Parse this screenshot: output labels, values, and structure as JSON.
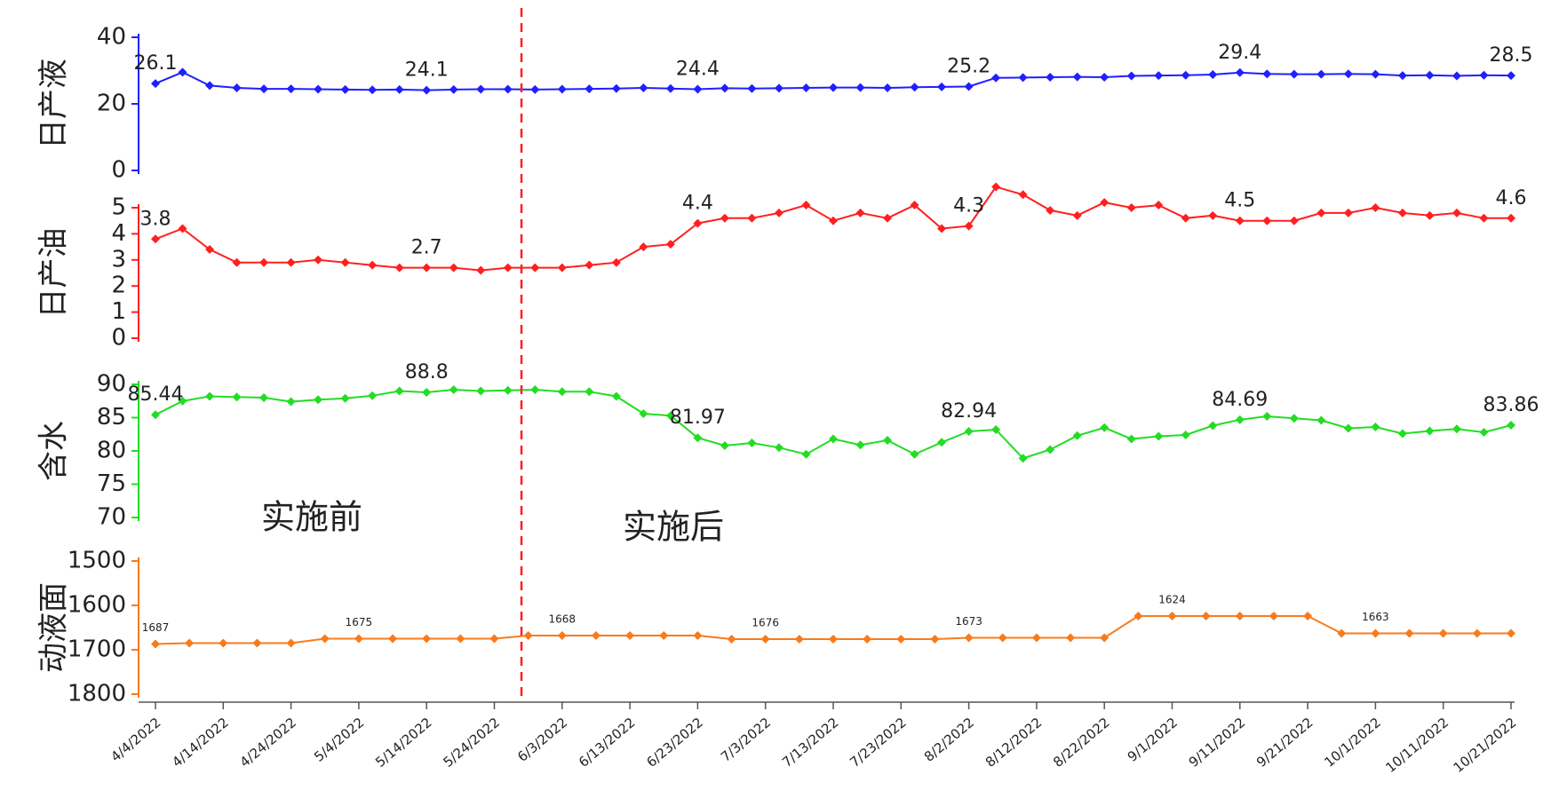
{
  "chart_data": [
    {
      "type": "line",
      "ylabel": "日产液",
      "ylim": [
        0,
        40
      ],
      "yticks": [
        0,
        20,
        40
      ],
      "xlim": [
        "4/4/2022",
        "10/21/2022"
      ],
      "x": [
        "4/4/2022",
        "4/8/2022",
        "4/12/2022",
        "4/16/2022",
        "4/20/2022",
        "4/24/2022",
        "4/28/2022",
        "5/2/2022",
        "5/6/2022",
        "5/10/2022",
        "5/14/2022",
        "5/18/2022",
        "5/22/2022",
        "5/26/2022",
        "5/30/2022",
        "6/3/2022",
        "6/7/2022",
        "6/11/2022",
        "6/15/2022",
        "6/19/2022",
        "6/23/2022",
        "6/27/2022",
        "7/1/2022",
        "7/5/2022",
        "7/9/2022",
        "7/13/2022",
        "7/17/2022",
        "7/21/2022",
        "7/25/2022",
        "7/29/2022",
        "8/2/2022",
        "8/6/2022",
        "8/10/2022",
        "8/14/2022",
        "8/18/2022",
        "8/22/2022",
        "8/26/2022",
        "8/30/2022",
        "9/3/2022",
        "9/7/2022",
        "9/11/2022",
        "9/15/2022",
        "9/19/2022",
        "9/23/2022",
        "9/27/2022",
        "10/1/2022",
        "10/5/2022",
        "10/9/2022",
        "10/13/2022",
        "10/17/2022",
        "10/21/2022"
      ],
      "series": [
        {
          "color": "#1f1fff",
          "values": [
            26.1,
            29.5,
            25.5,
            24.8,
            24.5,
            24.5,
            24.4,
            24.3,
            24.2,
            24.3,
            24.1,
            24.3,
            24.4,
            24.4,
            24.3,
            24.4,
            24.5,
            24.6,
            24.8,
            24.6,
            24.4,
            24.7,
            24.6,
            24.7,
            24.8,
            24.9,
            24.9,
            24.8,
            25.0,
            25.1,
            25.2,
            27.8,
            27.9,
            28.0,
            28.1,
            28.0,
            28.4,
            28.5,
            28.6,
            28.8,
            29.4,
            29.0,
            28.9,
            28.9,
            29.0,
            28.9,
            28.5,
            28.6,
            28.4,
            28.6,
            28.5
          ],
          "value_labels": [
            "26.1",
            null,
            null,
            null,
            null,
            null,
            null,
            null,
            null,
            null,
            "24.1",
            null,
            null,
            null,
            null,
            null,
            null,
            null,
            null,
            null,
            "24.4",
            null,
            null,
            null,
            null,
            null,
            null,
            null,
            null,
            null,
            "25.2",
            null,
            null,
            null,
            null,
            null,
            null,
            null,
            null,
            null,
            "29.4",
            null,
            null,
            null,
            null,
            null,
            null,
            null,
            null,
            null,
            "28.5"
          ]
        }
      ]
    },
    {
      "type": "line",
      "ylabel": "日产油",
      "ylim": [
        0,
        5
      ],
      "yticks": [
        0,
        1,
        2,
        3,
        4,
        5
      ],
      "xlim": [
        "4/4/2022",
        "10/21/2022"
      ],
      "x": [
        "4/4/2022",
        "4/8/2022",
        "4/12/2022",
        "4/16/2022",
        "4/20/2022",
        "4/24/2022",
        "4/28/2022",
        "5/2/2022",
        "5/6/2022",
        "5/10/2022",
        "5/14/2022",
        "5/18/2022",
        "5/22/2022",
        "5/26/2022",
        "5/30/2022",
        "6/3/2022",
        "6/7/2022",
        "6/11/2022",
        "6/15/2022",
        "6/19/2022",
        "6/23/2022",
        "6/27/2022",
        "7/1/2022",
        "7/5/2022",
        "7/9/2022",
        "7/13/2022",
        "7/17/2022",
        "7/21/2022",
        "7/25/2022",
        "7/29/2022",
        "8/2/2022",
        "8/6/2022",
        "8/10/2022",
        "8/14/2022",
        "8/18/2022",
        "8/22/2022",
        "8/26/2022",
        "8/30/2022",
        "9/3/2022",
        "9/7/2022",
        "9/11/2022",
        "9/15/2022",
        "9/19/2022",
        "9/23/2022",
        "9/27/2022",
        "10/1/2022",
        "10/5/2022",
        "10/9/2022",
        "10/13/2022",
        "10/17/2022",
        "10/21/2022"
      ],
      "series": [
        {
          "color": "#ff1f1f",
          "values": [
            3.8,
            4.2,
            3.4,
            2.9,
            2.9,
            2.9,
            3.0,
            2.9,
            2.8,
            2.7,
            2.7,
            2.7,
            2.6,
            2.7,
            2.7,
            2.7,
            2.8,
            2.9,
            3.5,
            3.6,
            4.4,
            4.6,
            4.6,
            4.8,
            5.1,
            4.5,
            4.8,
            4.6,
            5.1,
            4.2,
            4.3,
            5.8,
            5.5,
            4.9,
            4.7,
            5.2,
            5.0,
            5.1,
            4.6,
            4.7,
            4.5,
            4.5,
            4.5,
            4.8,
            4.8,
            5.0,
            4.8,
            4.7,
            4.8,
            4.6,
            4.6
          ],
          "value_labels": [
            "3.8",
            null,
            null,
            null,
            null,
            null,
            null,
            null,
            null,
            null,
            "2.7",
            null,
            null,
            null,
            null,
            null,
            null,
            null,
            null,
            null,
            "4.4",
            null,
            null,
            null,
            null,
            null,
            null,
            null,
            null,
            null,
            "4.3",
            null,
            null,
            null,
            null,
            null,
            null,
            null,
            null,
            null,
            "4.5",
            null,
            null,
            null,
            null,
            null,
            null,
            null,
            null,
            null,
            "4.6"
          ]
        }
      ]
    },
    {
      "type": "line",
      "ylabel": "含水",
      "ylim": [
        70,
        90
      ],
      "yticks": [
        70,
        75,
        80,
        85,
        90
      ],
      "xlim": [
        "4/4/2022",
        "10/21/2022"
      ],
      "annotations": [
        "实施前",
        "实施后"
      ],
      "x": [
        "4/4/2022",
        "4/8/2022",
        "4/12/2022",
        "4/16/2022",
        "4/20/2022",
        "4/24/2022",
        "4/28/2022",
        "5/2/2022",
        "5/6/2022",
        "5/10/2022",
        "5/14/2022",
        "5/18/2022",
        "5/22/2022",
        "5/26/2022",
        "5/30/2022",
        "6/3/2022",
        "6/7/2022",
        "6/11/2022",
        "6/15/2022",
        "6/19/2022",
        "6/23/2022",
        "6/27/2022",
        "7/1/2022",
        "7/5/2022",
        "7/9/2022",
        "7/13/2022",
        "7/17/2022",
        "7/21/2022",
        "7/25/2022",
        "7/29/2022",
        "8/2/2022",
        "8/6/2022",
        "8/10/2022",
        "8/14/2022",
        "8/18/2022",
        "8/22/2022",
        "8/26/2022",
        "8/30/2022",
        "9/3/2022",
        "9/7/2022",
        "9/11/2022",
        "9/15/2022",
        "9/19/2022",
        "9/23/2022",
        "9/27/2022",
        "10/1/2022",
        "10/5/2022",
        "10/9/2022",
        "10/13/2022",
        "10/17/2022",
        "10/21/2022"
      ],
      "series": [
        {
          "color": "#22dd22",
          "values": [
            85.44,
            87.5,
            88.2,
            88.1,
            88.0,
            87.4,
            87.7,
            87.9,
            88.3,
            89.0,
            88.8,
            89.2,
            89.0,
            89.1,
            89.2,
            88.9,
            88.9,
            88.2,
            85.6,
            85.3,
            81.97,
            80.8,
            81.2,
            80.5,
            79.5,
            81.8,
            80.9,
            81.6,
            79.5,
            81.3,
            82.94,
            83.2,
            78.9,
            80.2,
            82.3,
            83.5,
            81.8,
            82.2,
            82.4,
            83.8,
            84.69,
            85.2,
            84.9,
            84.6,
            83.4,
            83.6,
            82.6,
            83.0,
            83.3,
            82.8,
            83.86
          ],
          "value_labels": [
            "85.44",
            null,
            null,
            null,
            null,
            null,
            null,
            null,
            null,
            null,
            "88.8",
            null,
            null,
            null,
            null,
            null,
            null,
            null,
            null,
            null,
            "81.97",
            null,
            null,
            null,
            null,
            null,
            null,
            null,
            null,
            null,
            "82.94",
            null,
            null,
            null,
            null,
            null,
            null,
            null,
            null,
            null,
            "84.69",
            null,
            null,
            null,
            null,
            null,
            null,
            null,
            null,
            null,
            "83.86"
          ]
        }
      ]
    },
    {
      "type": "line",
      "ylabel": "动液面",
      "ylim": [
        1800,
        1500
      ],
      "yticks": [
        1500,
        1600,
        1700,
        1800
      ],
      "xlim": [
        "4/4/2022",
        "10/21/2022"
      ],
      "xticks": [
        "4/4/2022",
        "4/14/2022",
        "4/24/2022",
        "5/4/2022",
        "5/14/2022",
        "5/24/2022",
        "6/3/2022",
        "6/13/2022",
        "6/23/2022",
        "7/3/2022",
        "7/13/2022",
        "7/23/2022",
        "8/2/2022",
        "8/12/2022",
        "8/22/2022",
        "9/1/2022",
        "9/11/2022",
        "9/21/2022",
        "10/1/2022",
        "10/11/2022",
        "10/21/2022"
      ],
      "divider_x": "5/28/2022",
      "x": [
        "4/4/2022",
        "4/9/2022",
        "4/14/2022",
        "4/19/2022",
        "4/24/2022",
        "4/29/2022",
        "5/4/2022",
        "5/9/2022",
        "5/14/2022",
        "5/19/2022",
        "5/24/2022",
        "5/29/2022",
        "6/3/2022",
        "6/8/2022",
        "6/13/2022",
        "6/18/2022",
        "6/23/2022",
        "6/28/2022",
        "7/3/2022",
        "7/8/2022",
        "7/13/2022",
        "7/18/2022",
        "7/23/2022",
        "7/28/2022",
        "8/2/2022",
        "8/7/2022",
        "8/12/2022",
        "8/17/2022",
        "8/22/2022",
        "8/27/2022",
        "9/1/2022",
        "9/6/2022",
        "9/11/2022",
        "9/16/2022",
        "9/21/2022",
        "9/26/2022",
        "10/1/2022",
        "10/6/2022",
        "10/11/2022",
        "10/16/2022",
        "10/21/2022"
      ],
      "series": [
        {
          "color": "#f77b1c",
          "values": [
            1687,
            1685,
            1685,
            1685,
            1685,
            1675,
            1675,
            1675,
            1675,
            1675,
            1675,
            1668,
            1668,
            1668,
            1668,
            1668,
            1668,
            1676,
            1676,
            1676,
            1676,
            1676,
            1676,
            1676,
            1673,
            1673,
            1673,
            1673,
            1673,
            1624,
            1624,
            1624,
            1624,
            1624,
            1624,
            1663,
            1663,
            1663,
            1663,
            1663,
            1663
          ],
          "value_labels": [
            "1687",
            null,
            null,
            null,
            null,
            null,
            "1675",
            null,
            null,
            null,
            null,
            null,
            "1668",
            null,
            null,
            null,
            null,
            null,
            "1676",
            null,
            null,
            null,
            null,
            null,
            "1673",
            null,
            null,
            null,
            null,
            null,
            "1624",
            null,
            null,
            null,
            null,
            null,
            "1663",
            null,
            null,
            null,
            null
          ]
        }
      ]
    }
  ]
}
